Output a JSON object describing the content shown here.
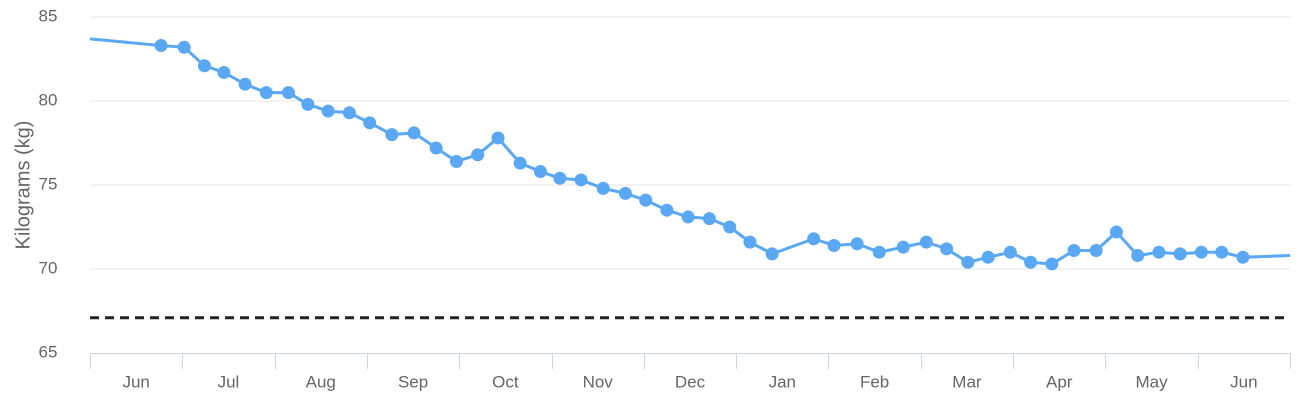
{
  "chart_data": {
    "type": "line",
    "y_axis_label": "Kilograms (kg)",
    "categories": [
      "Jun",
      "Jul",
      "Aug",
      "Sep",
      "Oct",
      "Nov",
      "Dec",
      "Jan",
      "Feb",
      "Mar",
      "Apr",
      "May",
      "Jun"
    ],
    "xlim": [
      0,
      13
    ],
    "xticks": [
      0,
      1,
      2,
      3,
      4,
      5,
      6,
      7,
      8,
      9,
      10,
      11,
      12,
      13
    ],
    "ylim": [
      65,
      85
    ],
    "yticks": [
      65,
      70,
      75,
      80,
      85
    ],
    "grid": true,
    "target_line": 67.1,
    "target_color": "#222222",
    "series": [
      {
        "color": "#5aa8f4",
        "x": [
          0,
          0.77,
          1.02,
          1.24,
          1.45,
          1.68,
          1.91,
          2.15,
          2.36,
          2.58,
          2.81,
          3.03,
          3.27,
          3.51,
          3.75,
          3.97,
          4.2,
          4.42,
          4.66,
          4.88,
          5.09,
          5.32,
          5.56,
          5.8,
          6.02,
          6.25,
          6.48,
          6.71,
          6.93,
          7.15,
          7.39,
          7.84,
          8.06,
          8.31,
          8.55,
          8.81,
          9.06,
          9.28,
          9.51,
          9.73,
          9.97,
          10.19,
          10.42,
          10.66,
          10.9,
          11.12,
          11.35,
          11.58,
          11.81,
          12.04,
          12.26,
          12.49,
          13
        ],
        "values": [
          83.7,
          83.3,
          83.2,
          82.1,
          81.7,
          81.0,
          80.5,
          80.5,
          79.8,
          79.4,
          79.3,
          78.7,
          78.0,
          78.1,
          77.2,
          76.4,
          76.8,
          77.8,
          76.3,
          75.8,
          75.4,
          75.3,
          74.8,
          74.5,
          74.1,
          73.5,
          73.1,
          73.0,
          72.5,
          71.6,
          70.9,
          71.8,
          71.4,
          71.5,
          71.0,
          71.3,
          71.6,
          71.2,
          70.4,
          70.7,
          71.0,
          70.4,
          70.3,
          71.1,
          71.1,
          72.2,
          70.8,
          71.0,
          70.9,
          71.0,
          71.0,
          70.7,
          70.8
        ]
      }
    ]
  }
}
